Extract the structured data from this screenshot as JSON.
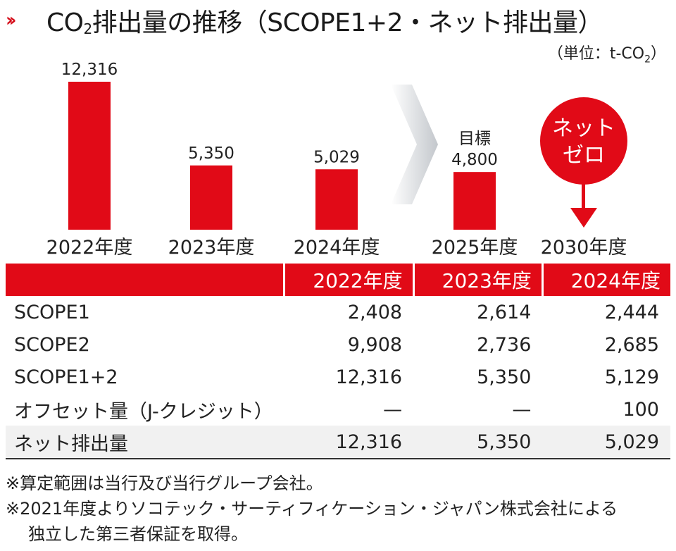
{
  "header": {
    "chevron_icon": "double-chevron-right-icon",
    "title_prefix": "CO",
    "title_sub": "2",
    "title_suffix": "排出量の推移（SCOPE1+2・ネット排出量）",
    "unit_prefix": "（単位：t-CO",
    "unit_sub": "2",
    "unit_suffix": "）"
  },
  "colors": {
    "accent": "#e10a17",
    "text": "#222222",
    "net_row_bg": "#f1f1f1",
    "arrow_gray": "#c8ccd0"
  },
  "chart_data": {
    "type": "bar",
    "title": "CO2排出量の推移（SCOPE1+2・ネット排出量）",
    "ylabel": "t-CO2",
    "ylim": [
      0,
      12316
    ],
    "categories": [
      "2022年度",
      "2023年度",
      "2024年度",
      "2025年度",
      "2030年度"
    ],
    "values": [
      12316,
      5350,
      5029,
      4800,
      0
    ],
    "value_labels": [
      "12,316",
      "5,350",
      "5,029",
      "4,800",
      ""
    ],
    "target_label": "目標",
    "netzero_line1": "ネット",
    "netzero_line2": "ゼロ"
  },
  "table": {
    "headers": [
      "",
      "2022年度",
      "2023年度",
      "2024年度"
    ],
    "rows": [
      {
        "label": "SCOPE1",
        "values": [
          "2,408",
          "2,614",
          "2,444"
        ]
      },
      {
        "label": "SCOPE2",
        "values": [
          "9,908",
          "2,736",
          "2,685"
        ]
      },
      {
        "label": "SCOPE1+2",
        "values": [
          "12,316",
          "5,350",
          "5,129"
        ]
      },
      {
        "label": "オフセット量（J-クレジット）",
        "values": [
          "—",
          "—",
          "100"
        ]
      },
      {
        "label": "ネット排出量",
        "values": [
          "12,316",
          "5,350",
          "5,029"
        ]
      }
    ]
  },
  "notes": [
    "※算定範囲は当行及び当行グループ会社。",
    "※2021年度よりソコテック・サーティフィケーション・ジャパン株式会社による",
    "独立した第三者保証を取得。"
  ]
}
